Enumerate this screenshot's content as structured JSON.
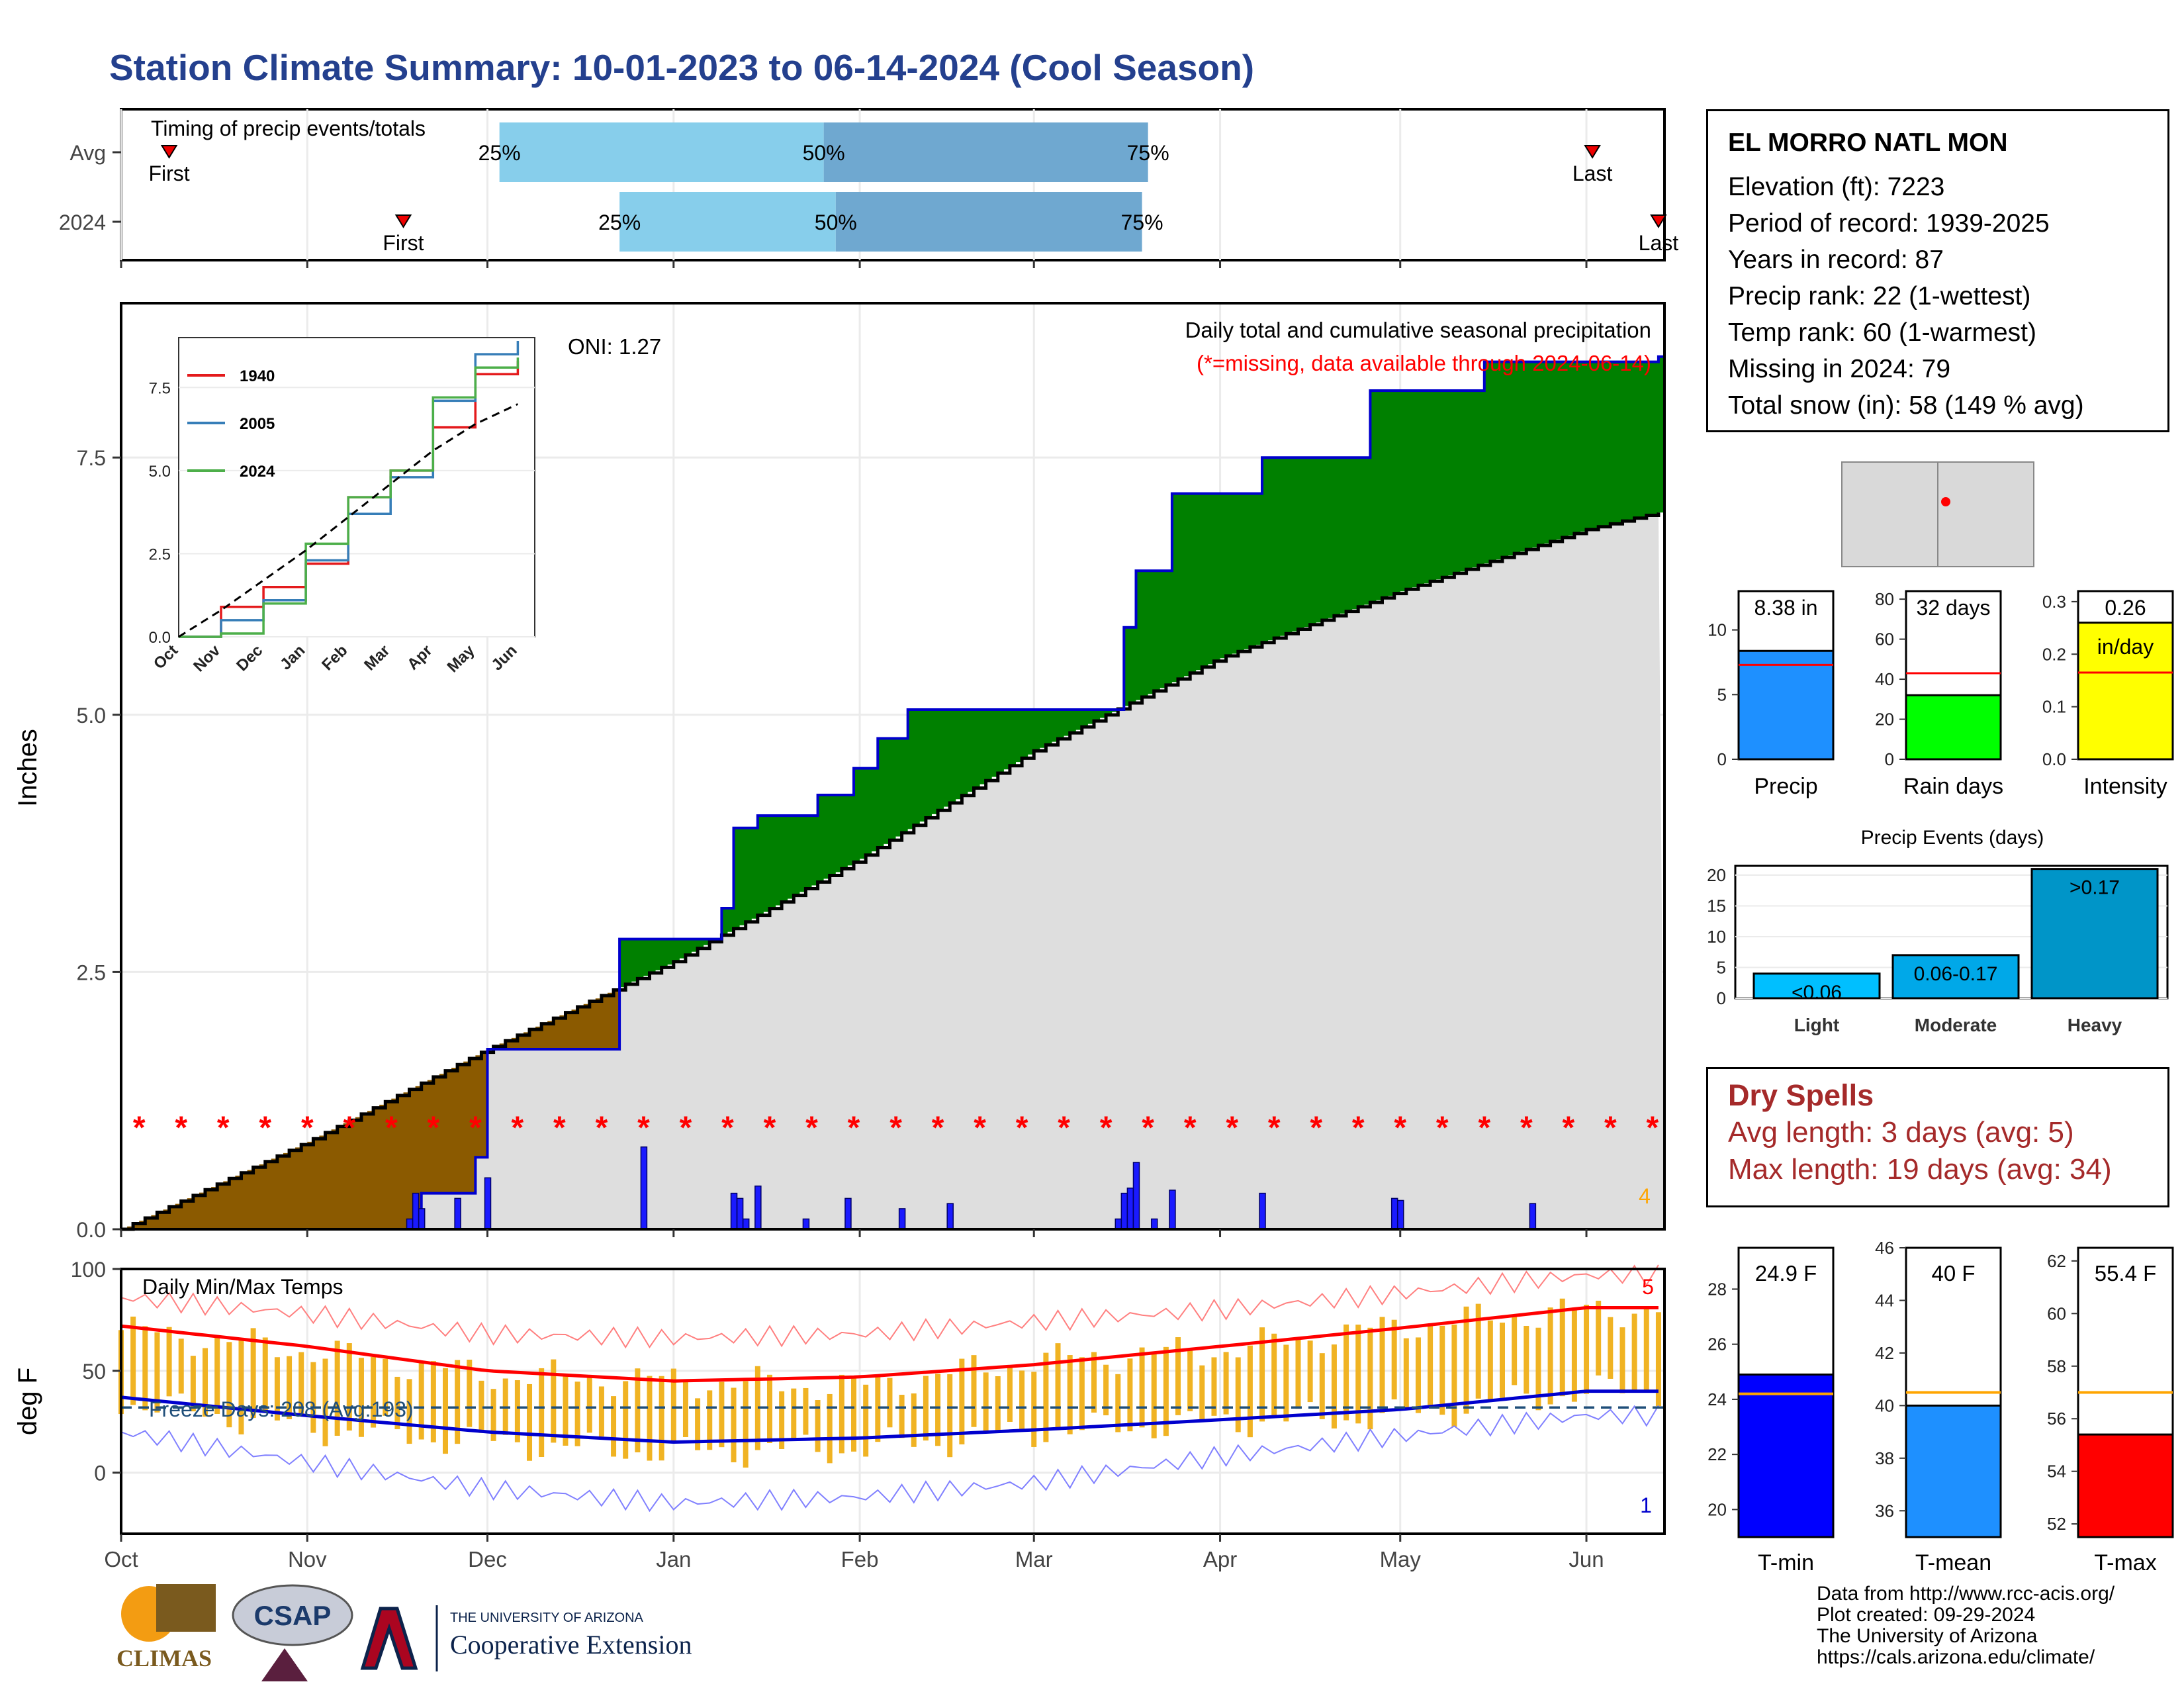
{
  "title": "Station Climate Summary: 10-01-2023 to 06-14-2024 (Cool Season)",
  "timing": {
    "title": "Timing of precip events/totals",
    "rows": [
      {
        "label": "Avg",
        "first": "First",
        "last": "Last",
        "p25": "25%",
        "p50": "50%",
        "p75": "75%"
      },
      {
        "label": "2024",
        "first": "First",
        "last": "Last",
        "p25": "25%",
        "p50": "50%",
        "p75": "75%"
      }
    ]
  },
  "main": {
    "y_axis_label": "Inches",
    "title": "Daily total and cumulative seasonal precipitation",
    "subtitle": "(*=missing, data available through 2024-06-14)",
    "oni": "ONI: 1.27",
    "missing_count": "4",
    "y_ticks": [
      "0.0",
      "2.5",
      "5.0",
      "7.5"
    ]
  },
  "inset": {
    "y_ticks": [
      "0.0",
      "2.5",
      "5.0",
      "7.5"
    ],
    "x_ticks": [
      "Oct",
      "Nov",
      "Dec",
      "Jan",
      "Feb",
      "Mar",
      "Apr",
      "May",
      "Jun"
    ],
    "legend": [
      "1940",
      "2005",
      "2024"
    ]
  },
  "temps": {
    "title": "Daily Min/Max Temps",
    "y_axis_label": "deg F",
    "freeze": "Freeze Days: 208 (Avg:193)",
    "hot_records": "5",
    "cold_records": "1",
    "y_ticks": [
      "0",
      "50",
      "100"
    ]
  },
  "x_ticks": [
    "Oct",
    "Nov",
    "Dec",
    "Jan",
    "Feb",
    "Mar",
    "Apr",
    "May",
    "Jun"
  ],
  "station": {
    "name": "EL MORRO NATL MON",
    "lines": [
      "Elevation (ft): 7223",
      "Period of record: 1939-2025",
      "Years in record: 87",
      "Precip rank: 22 (1-wettest)",
      "Temp rank: 60 (1-warmest)",
      "Missing in 2024: 79",
      "Total snow (in): 58 (149 % avg)"
    ]
  },
  "mini_bars": [
    {
      "label": "Precip",
      "value_text": "8.38 in",
      "ticks": [
        "0",
        "5",
        "10"
      ],
      "color": "#1e90ff"
    },
    {
      "label": "Rain days",
      "value_text": "32 days",
      "ticks": [
        "0",
        "20",
        "40",
        "60",
        "80"
      ],
      "color": "#00ff00"
    },
    {
      "label": "Intensity",
      "value_text": "0.26",
      "unit": "in/day",
      "ticks": [
        "0.0",
        "0.1",
        "0.2",
        "0.3"
      ],
      "color": "#ffff00"
    }
  ],
  "events": {
    "title": "Precip Events (days)",
    "categories": [
      "Light",
      "Moderate",
      "Heavy"
    ],
    "labels": [
      "<0.06",
      "0.06-0.17",
      ">0.17"
    ],
    "ticks": [
      "0",
      "5",
      "10",
      "15",
      "20"
    ]
  },
  "dry_spells": {
    "title": "Dry Spells",
    "avg": "Avg length: 3 days (avg: 5)",
    "max": "Max length: 19 days (avg: 34)"
  },
  "temp_bars": [
    {
      "label": "T-min",
      "value_text": "24.9 F",
      "ticks": [
        "20",
        "22",
        "24",
        "26",
        "28"
      ],
      "color": "#0000ff"
    },
    {
      "label": "T-mean",
      "value_text": "40 F",
      "ticks": [
        "36",
        "38",
        "40",
        "42",
        "44",
        "46"
      ],
      "color": "#1e90ff"
    },
    {
      "label": "T-max",
      "value_text": "55.4 F",
      "ticks": [
        "52",
        "54",
        "56",
        "58",
        "60",
        "62"
      ],
      "color": "#ff0000"
    }
  ],
  "logos": {
    "climas": "CLIMAS",
    "csap": "CSAP",
    "ua_small": "THE UNIVERSITY OF ARIZONA",
    "ua_big": "Cooperative Extension"
  },
  "credits": [
    "Data from http://www.rcc-acis.org/",
    "Plot created: 09-29-2024",
    "The University of Arizona",
    "https://cals.arizona.edu/climate/"
  ],
  "chart_data": [
    {
      "type": "bar",
      "name": "timing",
      "categories": [
        "Avg",
        "2024"
      ],
      "series": [
        {
          "name": "First",
          "values": [
            "2023-10-09",
            "2023-11-17"
          ]
        },
        {
          "name": "25%",
          "values": [
            "2023-12-03",
            "2023-12-23"
          ]
        },
        {
          "name": "50%",
          "values": [
            "2024-01-26",
            "2024-01-28"
          ]
        },
        {
          "name": "75%",
          "values": [
            "2024-03-20",
            "2024-03-19"
          ]
        },
        {
          "name": "Last",
          "values": [
            "2024-06-02",
            "2024-06-13"
          ]
        }
      ]
    },
    {
      "type": "area",
      "name": "cumulative precipitation",
      "xlim": [
        "2023-10-01",
        "2024-06-14"
      ],
      "ylim": [
        0,
        9.0
      ],
      "avg_cumulative": {
        "x": [
          "2023-10-01",
          "2023-11-01",
          "2023-12-01",
          "2024-01-01",
          "2024-02-01",
          "2024-03-01",
          "2024-04-01",
          "2024-05-01",
          "2024-06-01",
          "2024-06-14"
        ],
        "y": [
          0.0,
          0.85,
          1.75,
          2.6,
          3.6,
          4.65,
          5.55,
          6.2,
          6.8,
          6.98
        ]
      },
      "cumulative_2024": {
        "x": [
          "2023-10-01",
          "2023-11-18",
          "2023-11-20",
          "2023-11-29",
          "2023-12-01",
          "2023-12-23",
          "2024-01-09",
          "2024-01-11",
          "2024-01-15",
          "2024-01-25",
          "2024-01-31",
          "2024-02-04",
          "2024-02-09",
          "2024-03-14",
          "2024-03-16",
          "2024-03-18",
          "2024-03-24",
          "2024-04-08",
          "2024-04-26",
          "2024-05-15",
          "2024-06-13"
        ],
        "y": [
          0.0,
          0.0,
          0.35,
          0.7,
          1.75,
          2.82,
          3.12,
          3.9,
          4.02,
          4.22,
          4.48,
          4.77,
          5.05,
          5.05,
          5.85,
          6.4,
          7.15,
          7.5,
          8.15,
          8.43,
          8.48
        ]
      },
      "daily_precip": {
        "x": [
          "2023-11-18",
          "2023-11-19",
          "2023-11-20",
          "2023-11-26",
          "2023-12-01",
          "2023-12-27",
          "2024-01-11",
          "2024-01-12",
          "2024-01-13",
          "2024-01-15",
          "2024-01-23",
          "2024-01-30",
          "2024-02-08",
          "2024-02-16",
          "2024-03-15",
          "2024-03-16",
          "2024-03-17",
          "2024-03-18",
          "2024-03-21",
          "2024-03-24",
          "2024-04-08",
          "2024-04-30",
          "2024-05-01",
          "2024-05-23"
        ],
        "y": [
          0.1,
          0.35,
          0.2,
          0.3,
          0.5,
          0.8,
          0.35,
          0.3,
          0.1,
          0.42,
          0.1,
          0.3,
          0.2,
          0.25,
          0.1,
          0.35,
          0.4,
          0.65,
          0.1,
          0.38,
          0.35,
          0.3,
          0.28,
          0.25
        ]
      },
      "missing_marker_y": 1.0,
      "oni": 1.27
    },
    {
      "type": "line",
      "name": "inset cumulative",
      "x": [
        "Oct",
        "Nov",
        "Dec",
        "Jan",
        "Feb",
        "Mar",
        "Apr",
        "May",
        "Jun"
      ],
      "ylim": [
        0,
        9
      ],
      "series": [
        {
          "name": "1940",
          "values": [
            0.0,
            0.9,
            1.5,
            2.2,
            4.2,
            5.0,
            6.3,
            7.9,
            8.3
          ]
        },
        {
          "name": "2005",
          "values": [
            0.0,
            0.5,
            1.1,
            2.3,
            3.7,
            4.8,
            7.1,
            8.5,
            8.9
          ]
        },
        {
          "name": "2024",
          "values": [
            0.0,
            0.1,
            1.0,
            2.8,
            4.2,
            5.0,
            7.2,
            8.1,
            8.4
          ]
        },
        {
          "name": "avg",
          "values": [
            0.0,
            0.8,
            1.7,
            2.6,
            3.6,
            4.6,
            5.6,
            6.4,
            7.0
          ]
        }
      ]
    },
    {
      "type": "bar",
      "name": "daily min/max temps",
      "ylim": [
        -30,
        100
      ],
      "freeze_line": 32,
      "x": [
        "2023-10-01",
        "2023-11-01",
        "2023-12-01",
        "2024-01-01",
        "2024-02-01",
        "2024-03-01",
        "2024-04-01",
        "2024-05-01",
        "2024-06-01"
      ],
      "avg_max": [
        72,
        62,
        50,
        45,
        47,
        53,
        62,
        71,
        81
      ],
      "avg_min": [
        37,
        28,
        20,
        15,
        17,
        21,
        26,
        31,
        40
      ],
      "record_max": [
        86,
        78,
        68,
        66,
        68,
        74,
        80,
        88,
        97
      ],
      "record_min": [
        20,
        5,
        -8,
        -15,
        -12,
        -5,
        8,
        18,
        28
      ],
      "obs_max": [
        70,
        60,
        48,
        45,
        42,
        55,
        60,
        72,
        80
      ],
      "obs_min": [
        35,
        22,
        15,
        10,
        12,
        20,
        25,
        28,
        40
      ]
    },
    {
      "type": "bar",
      "name": "season totals",
      "categories": [
        "Precip",
        "Rain days",
        "Intensity"
      ],
      "values": [
        8.38,
        32,
        0.26
      ],
      "averages": [
        7.3,
        43,
        0.165
      ],
      "ylims": [
        [
          0,
          13
        ],
        [
          0,
          84
        ],
        [
          0,
          0.32
        ]
      ]
    },
    {
      "type": "bar",
      "name": "Precip Events (days)",
      "categories": [
        "Light",
        "Moderate",
        "Heavy"
      ],
      "values": [
        4,
        7,
        21
      ],
      "ylim": [
        0,
        21.5
      ]
    },
    {
      "type": "bar",
      "name": "season temperatures",
      "categories": [
        "T-min",
        "T-mean",
        "T-max"
      ],
      "values": [
        24.9,
        40.0,
        55.4
      ],
      "averages": [
        24.2,
        40.5,
        57.0
      ],
      "ylims": [
        [
          19,
          29.5
        ],
        [
          35,
          46
        ],
        [
          51.5,
          62.5
        ]
      ]
    }
  ]
}
